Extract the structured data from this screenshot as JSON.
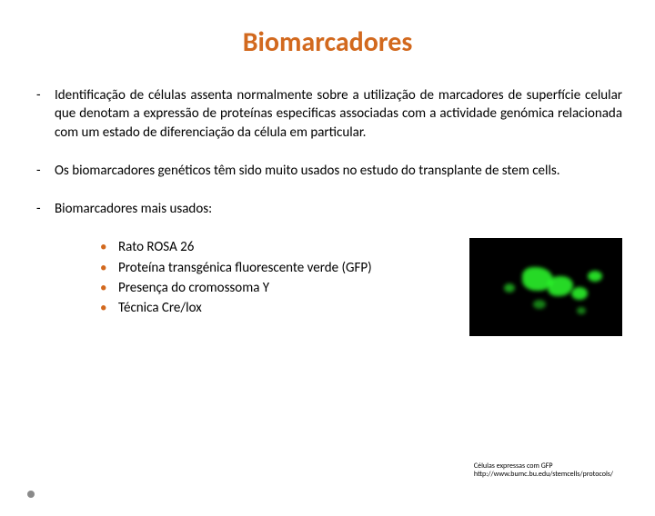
{
  "title": "Biomarcadores",
  "items": [
    "Identificação de células assenta normalmente sobre a utilização de marcadores de superfície celular que denotam a expressão de proteínas especificas associadas com a actividade genómica relacionada com um estado de diferenciação da célula em particular.",
    "Os biomarcadores genéticos têm sido muito usados no estudo do transplante de stem cells.",
    "Biomarcadores mais usados:"
  ],
  "sub_items": [
    "Rato ROSA 26",
    "Proteína transgénica fluorescente verde (GFP)",
    "Presença do cromossoma Y",
    "Técnica Cre/lox"
  ],
  "caption_line1": "Células expressas com GFP",
  "caption_line2": "http://www.bumc.bu.edu/stemcells/protocols/",
  "colors": {
    "title": "#d2691e",
    "bullet": "#d2691e",
    "text": "#000000",
    "background": "#ffffff"
  }
}
